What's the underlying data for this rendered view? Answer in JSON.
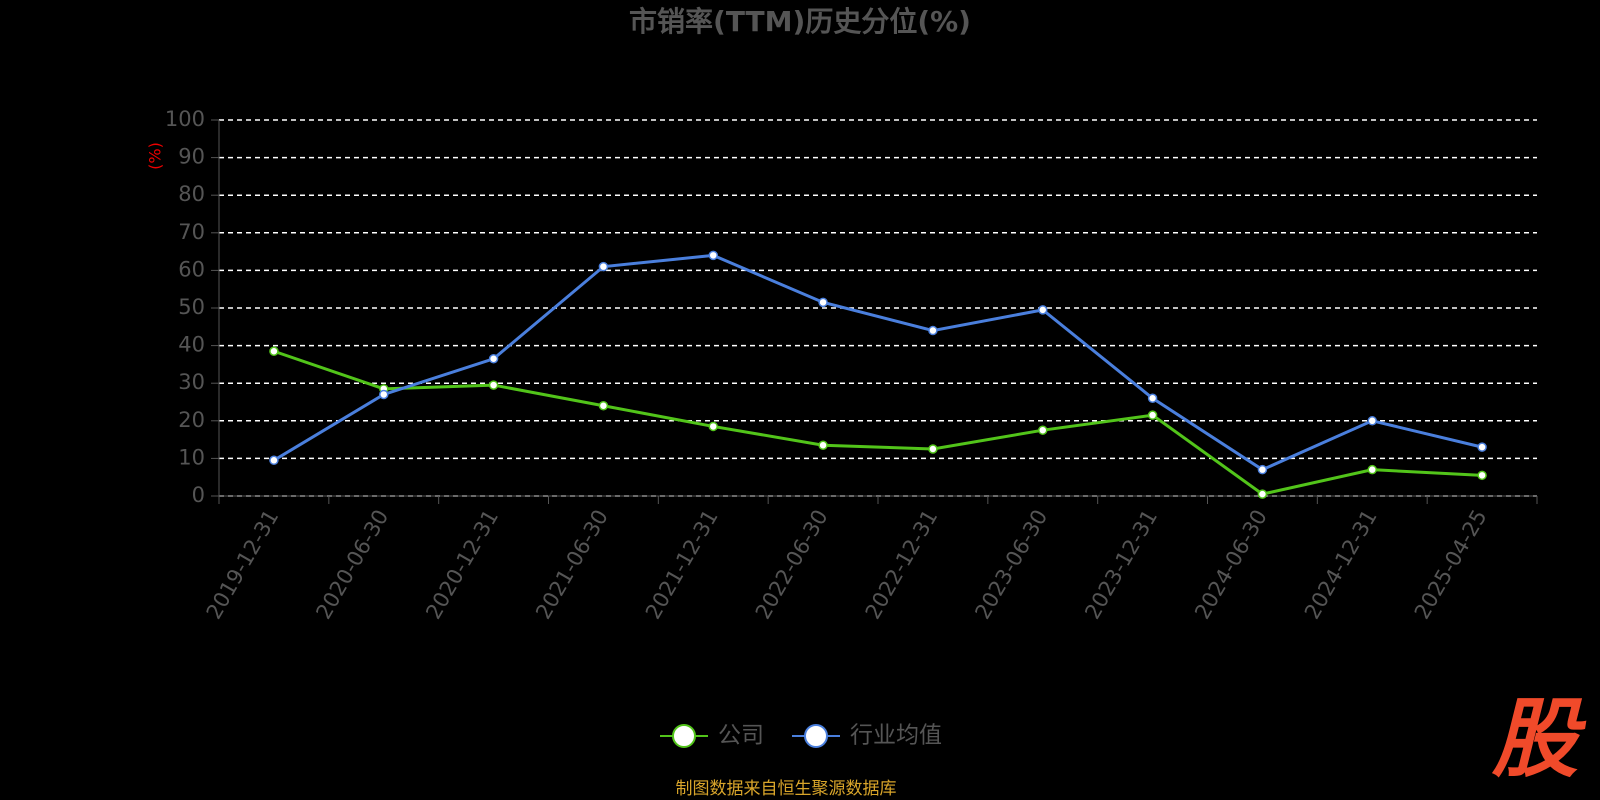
{
  "chart_data": {
    "type": "line",
    "title": "市销率(TTM)历史分位(%)",
    "y_label": "(%)",
    "categories": [
      "2019-12-31",
      "2020-06-30",
      "2020-12-31",
      "2021-06-30",
      "2021-12-31",
      "2022-06-30",
      "2022-12-31",
      "2023-06-30",
      "2023-12-31",
      "2024-06-30",
      "2024-12-31",
      "2025-04-25"
    ],
    "series": [
      {
        "name": "公司",
        "color": "#52c41a",
        "values": [
          38.5,
          28.5,
          29.5,
          24,
          18.5,
          13.5,
          12.5,
          17.5,
          21.5,
          0.5,
          7,
          5.5
        ]
      },
      {
        "name": "行业均值",
        "color": "#4a7fdd",
        "values": [
          9.5,
          27,
          36.5,
          61,
          64,
          51.5,
          44,
          49.5,
          26,
          7,
          20,
          13
        ]
      }
    ],
    "ylim": [
      0,
      100
    ],
    "yticks": [
      0,
      10,
      20,
      30,
      40,
      50,
      60,
      70,
      80,
      90,
      100
    ],
    "grid": true,
    "source": "制图数据来自恒生聚源数据库",
    "watermark": "股"
  }
}
